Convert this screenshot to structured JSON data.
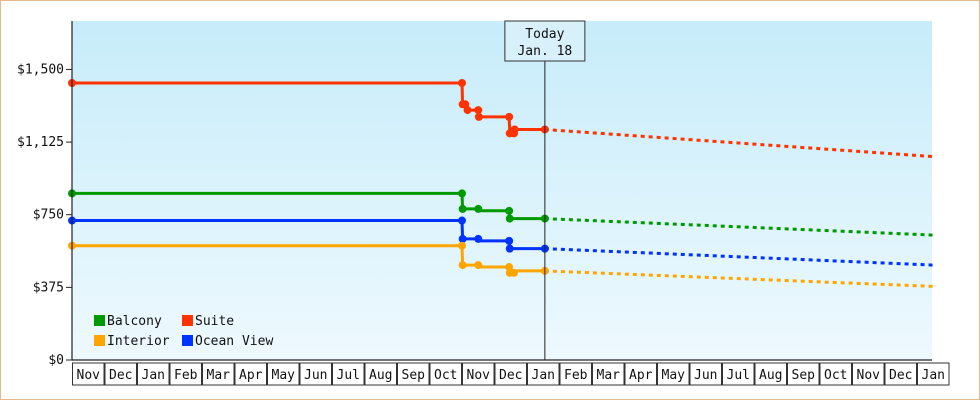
{
  "chart_data": {
    "type": "line",
    "title": "",
    "xlabel": "",
    "ylabel": "",
    "ylim": [
      0,
      1750
    ],
    "y_ticks": [
      {
        "value": 0,
        "label": "$0"
      },
      {
        "value": 375,
        "label": "$375"
      },
      {
        "value": 750,
        "label": "$750"
      },
      {
        "value": 1125,
        "label": "$1,125"
      },
      {
        "value": 1500,
        "label": "$1,500"
      }
    ],
    "x_ticks": [
      "Nov",
      "Dec",
      "Jan",
      "Feb",
      "Mar",
      "Apr",
      "May",
      "Jun",
      "Jul",
      "Aug",
      "Sep",
      "Oct",
      "Nov",
      "Dec",
      "Jan",
      "Feb",
      "Mar",
      "Apr",
      "May",
      "Jun",
      "Jul",
      "Aug",
      "Sep",
      "Oct",
      "Nov",
      "Dec",
      "Jan"
    ],
    "today_marker": {
      "month_index": 14.55,
      "line1": "Today",
      "line2": "Jan. 18"
    },
    "legend": {
      "placement": "bottom-left"
    },
    "background": {
      "top": "#c7ecfa",
      "bottom": "#eef9fe"
    },
    "series": [
      {
        "name": "Suite",
        "color": "#ff3300",
        "points": [
          [
            0,
            1430
          ],
          [
            12,
            1430
          ],
          [
            12.02,
            1320
          ],
          [
            12.1,
            1320
          ],
          [
            12.17,
            1290
          ],
          [
            12.5,
            1290
          ],
          [
            12.52,
            1255
          ],
          [
            13.45,
            1255
          ],
          [
            13.47,
            1170
          ],
          [
            13.6,
            1170
          ],
          [
            13.62,
            1190
          ],
          [
            14.55,
            1190
          ]
        ],
        "markers": [
          [
            0,
            1430
          ],
          [
            12,
            1430
          ],
          [
            12.02,
            1320
          ],
          [
            12.1,
            1320
          ],
          [
            12.17,
            1290
          ],
          [
            12.5,
            1290
          ],
          [
            12.52,
            1255
          ],
          [
            13.45,
            1255
          ],
          [
            13.47,
            1170
          ],
          [
            13.6,
            1170
          ],
          [
            13.62,
            1190
          ],
          [
            14.55,
            1190
          ]
        ],
        "forecast": [
          [
            14.55,
            1190
          ],
          [
            26.5,
            1050
          ]
        ]
      },
      {
        "name": "Balcony",
        "color": "#009900",
        "points": [
          [
            0,
            860
          ],
          [
            12,
            860
          ],
          [
            12.02,
            780
          ],
          [
            12.5,
            780
          ],
          [
            12.52,
            770
          ],
          [
            13.45,
            770
          ],
          [
            13.47,
            730
          ],
          [
            14.55,
            730
          ]
        ],
        "markers": [
          [
            0,
            860
          ],
          [
            12,
            860
          ],
          [
            12.02,
            780
          ],
          [
            12.5,
            780
          ],
          [
            13.45,
            770
          ],
          [
            13.47,
            730
          ],
          [
            14.55,
            730
          ]
        ],
        "forecast": [
          [
            14.55,
            730
          ],
          [
            26.5,
            645
          ]
        ]
      },
      {
        "name": "Ocean View",
        "color": "#0033ff",
        "points": [
          [
            0,
            720
          ],
          [
            12,
            720
          ],
          [
            12.02,
            625
          ],
          [
            12.5,
            625
          ],
          [
            12.52,
            615
          ],
          [
            13.45,
            615
          ],
          [
            13.47,
            575
          ],
          [
            14.55,
            575
          ]
        ],
        "markers": [
          [
            0,
            720
          ],
          [
            12,
            720
          ],
          [
            12.02,
            625
          ],
          [
            12.5,
            625
          ],
          [
            13.45,
            615
          ],
          [
            13.47,
            575
          ],
          [
            14.55,
            575
          ]
        ],
        "forecast": [
          [
            14.55,
            575
          ],
          [
            26.5,
            490
          ]
        ]
      },
      {
        "name": "Interior",
        "color": "#ffa500",
        "points": [
          [
            0,
            590
          ],
          [
            12,
            590
          ],
          [
            12.02,
            490
          ],
          [
            12.5,
            490
          ],
          [
            12.52,
            480
          ],
          [
            13.45,
            480
          ],
          [
            13.47,
            450
          ],
          [
            13.6,
            450
          ],
          [
            13.62,
            460
          ],
          [
            14.55,
            460
          ]
        ],
        "markers": [
          [
            0,
            590
          ],
          [
            12,
            590
          ],
          [
            12.02,
            490
          ],
          [
            12.5,
            490
          ],
          [
            13.45,
            480
          ],
          [
            13.47,
            450
          ],
          [
            13.6,
            450
          ],
          [
            14.55,
            460
          ]
        ],
        "forecast": [
          [
            14.55,
            460
          ],
          [
            26.5,
            380
          ]
        ]
      }
    ],
    "legend_order": [
      "Balcony",
      "Suite",
      "Interior",
      "Ocean View"
    ]
  }
}
